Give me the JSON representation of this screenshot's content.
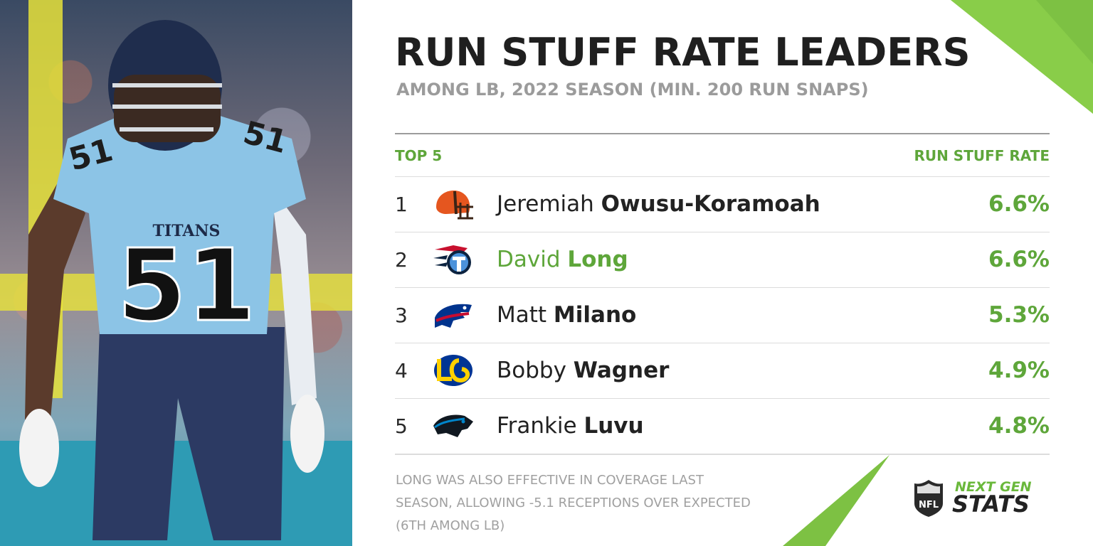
{
  "header": {
    "title": "RUN STUFF RATE LEADERS",
    "subtitle": "AMONG LB, 2022 SEASON (MIN. 200 RUN SNAPS)"
  },
  "table": {
    "left_header": "TOP 5",
    "right_header": "RUN STUFF RATE",
    "rows": [
      {
        "rank": "1",
        "first": "Jeremiah",
        "last": "Owusu-Koramoah",
        "value": "6.6%",
        "team_icon": "browns-helmet-icon"
      },
      {
        "rank": "2",
        "first": "David",
        "last": "Long",
        "value": "6.6%",
        "team_icon": "titans-logo-icon"
      },
      {
        "rank": "3",
        "first": "Matt",
        "last": "Milano",
        "value": "5.3%",
        "team_icon": "bills-logo-icon"
      },
      {
        "rank": "4",
        "first": "Bobby",
        "last": "Wagner",
        "value": "4.9%",
        "team_icon": "rams-logo-icon"
      },
      {
        "rank": "5",
        "first": "Frankie",
        "last": "Luvu",
        "value": "4.8%",
        "team_icon": "panthers-logo-icon"
      }
    ]
  },
  "footnote": {
    "line1": "LONG WAS ALSO EFFECTIVE IN COVERAGE LAST",
    "line2": "SEASON, ALLOWING -5.1 RECEPTIONS OVER EXPECTED",
    "line3": "(6TH AMONG LB)"
  },
  "brand": {
    "next": "NEXT GEN",
    "stats": "STATS"
  },
  "photo": {
    "jersey_number": "51",
    "jersey_team": "TITANS"
  },
  "colors": {
    "accent_green": "#5ea63a",
    "title_dark": "#1f1f1f",
    "subtitle_gray": "#9b9b9b"
  }
}
